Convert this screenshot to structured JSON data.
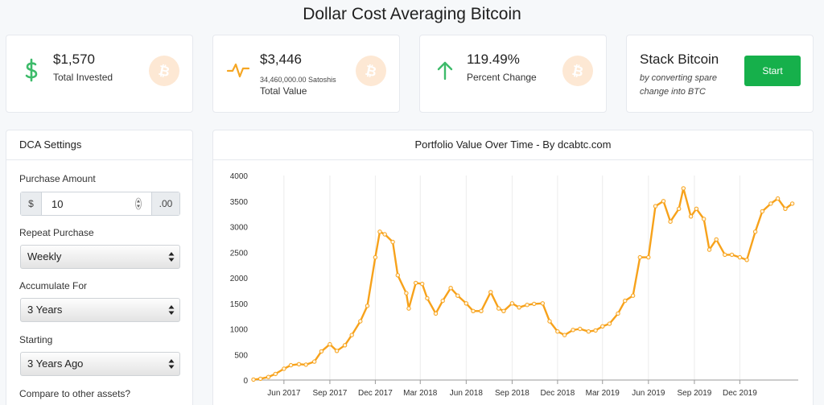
{
  "page": {
    "title": "Dollar Cost Averaging Bitcoin"
  },
  "stats": [
    {
      "value": "$1,570",
      "label": "Total Invested",
      "icon": "dollar-icon",
      "color": "#3dbb6a"
    },
    {
      "value": "$3,446",
      "sub": "34,460,000.00 Satoshis",
      "label": "Total Value",
      "icon": "pulse-icon",
      "color": "#f5a623"
    },
    {
      "value": "119.49%",
      "label": "Percent Change",
      "icon": "arrow-up-icon",
      "color": "#3dbb6a"
    }
  ],
  "stack": {
    "title": "Stack Bitcoin",
    "description": "by converting spare change into BTC",
    "button": "Start"
  },
  "settings": {
    "title": "DCA Settings",
    "purchase_amount_label": "Purchase Amount",
    "currency_prefix": "$",
    "amount_value": "10",
    "currency_suffix": ".00",
    "repeat_label": "Repeat Purchase",
    "repeat_value": "Weekly",
    "accumulate_label": "Accumulate For",
    "accumulate_value": "3 Years",
    "starting_label": "Starting",
    "starting_value": "3 Years Ago",
    "compare_label": "Compare to other assets?"
  },
  "chart": {
    "title": "Portfolio Value Over Time - By dcabtc.com"
  },
  "colors": {
    "accent": "#f7a21b",
    "btc_badge": "#fde8d4",
    "button": "#16b04b"
  },
  "chart_data": {
    "type": "line",
    "title": "Portfolio Value Over Time - By dcabtc.com",
    "ylim": [
      0,
      4000
    ],
    "yticks": [
      0,
      500,
      1000,
      1500,
      2000,
      2500,
      3000,
      3500,
      4000
    ],
    "xticks": [
      "Jun 2017",
      "Sep 2017",
      "Dec 2017",
      "Mar 2018",
      "Jun 2018",
      "Sep 2018",
      "Dec 2018",
      "Mar 2019",
      "Jun 2019",
      "Sep 2019",
      "Dec 2019"
    ],
    "xlim": [
      "2017-04-01",
      "2020-03-27"
    ],
    "grid": true,
    "legend": "none",
    "series": [
      {
        "color": "#f7a21b",
        "points": [
          [
            "2017-04-01",
            10
          ],
          [
            "2017-04-15",
            25
          ],
          [
            "2017-05-01",
            60
          ],
          [
            "2017-05-15",
            120
          ],
          [
            "2017-06-01",
            220
          ],
          [
            "2017-06-15",
            290
          ],
          [
            "2017-07-01",
            310
          ],
          [
            "2017-07-15",
            300
          ],
          [
            "2017-08-01",
            360
          ],
          [
            "2017-08-15",
            560
          ],
          [
            "2017-09-01",
            700
          ],
          [
            "2017-09-15",
            570
          ],
          [
            "2017-10-01",
            680
          ],
          [
            "2017-10-15",
            880
          ],
          [
            "2017-11-01",
            1150
          ],
          [
            "2017-11-15",
            1450
          ],
          [
            "2017-12-01",
            2400
          ],
          [
            "2017-12-10",
            2900
          ],
          [
            "2017-12-20",
            2850
          ],
          [
            "2018-01-05",
            2700
          ],
          [
            "2018-01-15",
            2050
          ],
          [
            "2018-02-01",
            1700
          ],
          [
            "2018-02-06",
            1400
          ],
          [
            "2018-02-20",
            1900
          ],
          [
            "2018-03-05",
            1880
          ],
          [
            "2018-03-15",
            1600
          ],
          [
            "2018-04-01",
            1300
          ],
          [
            "2018-04-15",
            1550
          ],
          [
            "2018-05-01",
            1800
          ],
          [
            "2018-05-15",
            1650
          ],
          [
            "2018-06-01",
            1500
          ],
          [
            "2018-06-15",
            1350
          ],
          [
            "2018-07-01",
            1350
          ],
          [
            "2018-07-20",
            1720
          ],
          [
            "2018-08-05",
            1400
          ],
          [
            "2018-08-15",
            1350
          ],
          [
            "2018-09-01",
            1500
          ],
          [
            "2018-09-15",
            1420
          ],
          [
            "2018-10-01",
            1470
          ],
          [
            "2018-10-15",
            1490
          ],
          [
            "2018-11-01",
            1500
          ],
          [
            "2018-11-15",
            1150
          ],
          [
            "2018-12-01",
            950
          ],
          [
            "2018-12-15",
            880
          ],
          [
            "2019-01-01",
            980
          ],
          [
            "2019-01-15",
            1000
          ],
          [
            "2019-02-01",
            950
          ],
          [
            "2019-02-15",
            970
          ],
          [
            "2019-03-01",
            1050
          ],
          [
            "2019-03-15",
            1100
          ],
          [
            "2019-04-01",
            1300
          ],
          [
            "2019-04-15",
            1550
          ],
          [
            "2019-05-01",
            1650
          ],
          [
            "2019-05-15",
            2400
          ],
          [
            "2019-06-01",
            2400
          ],
          [
            "2019-06-15",
            3400
          ],
          [
            "2019-07-01",
            3500
          ],
          [
            "2019-07-15",
            3100
          ],
          [
            "2019-08-01",
            3350
          ],
          [
            "2019-08-10",
            3750
          ],
          [
            "2019-08-25",
            3200
          ],
          [
            "2019-09-05",
            3350
          ],
          [
            "2019-09-20",
            3150
          ],
          [
            "2019-10-01",
            2550
          ],
          [
            "2019-10-15",
            2750
          ],
          [
            "2019-11-01",
            2450
          ],
          [
            "2019-11-15",
            2450
          ],
          [
            "2019-12-01",
            2400
          ],
          [
            "2019-12-15",
            2350
          ],
          [
            "2020-01-01",
            2900
          ],
          [
            "2020-01-15",
            3300
          ],
          [
            "2020-02-01",
            3450
          ],
          [
            "2020-02-15",
            3550
          ],
          [
            "2020-03-01",
            3350
          ],
          [
            "2020-03-15",
            3450
          ]
        ]
      }
    ]
  }
}
